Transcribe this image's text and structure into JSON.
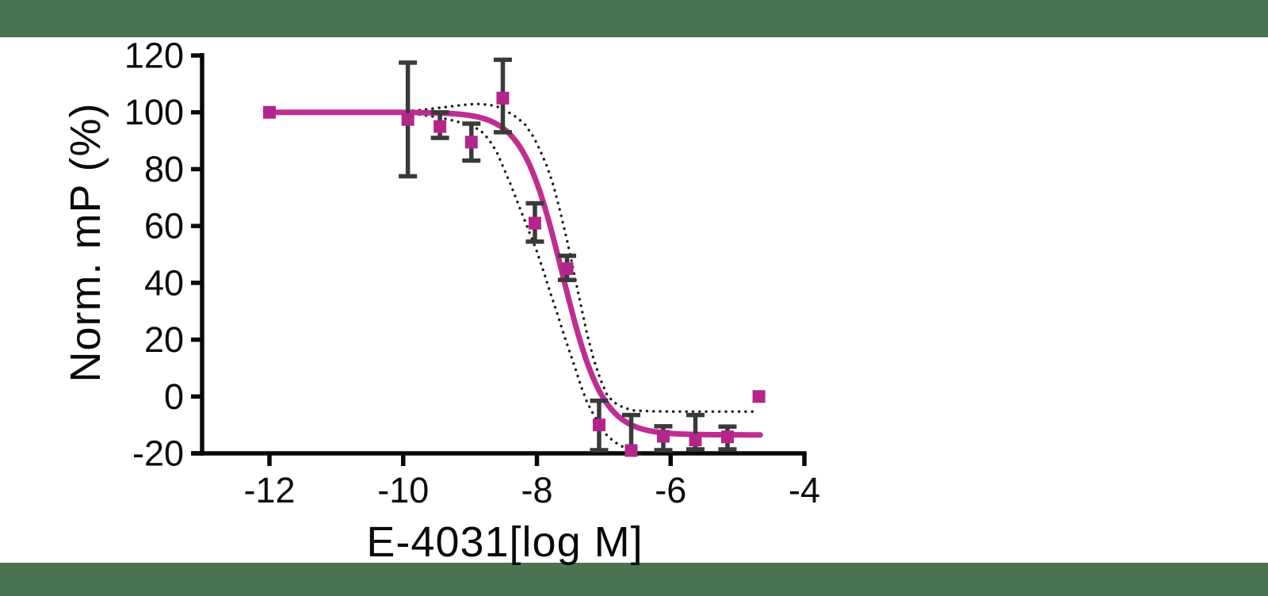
{
  "page": {
    "background": "#ffffff",
    "banner_color": "#4b7251"
  },
  "chart_data": {
    "type": "scatter",
    "subtype": "dose-response inhibition curve with 4PL fit and 95% confidence band",
    "title": "",
    "xlabel": "E-4031[log M]",
    "ylabel": "Norm. mP (%)",
    "xlim": [
      -13.0,
      -4.0
    ],
    "ylim": [
      -20,
      120
    ],
    "x_ticks": [
      -12,
      -10,
      -8,
      -6,
      -4
    ],
    "y_ticks": [
      120,
      100,
      80,
      60,
      40,
      20,
      0,
      -20
    ],
    "grid": false,
    "legend": "none",
    "colors": {
      "marker": "#b3258a",
      "curve": "#c02d92",
      "error_bar": "#3a3a3a",
      "band": "#1c1c1c",
      "axis": "#0a0a0a"
    },
    "series": [
      {
        "name": "E-4031",
        "marker": "square",
        "points": [
          {
            "x": -12.0,
            "y": 100
          },
          {
            "x": -9.93,
            "y": 97.5,
            "err_hi": 117.5,
            "err_lo": 77.5
          },
          {
            "x": -9.45,
            "y": 95,
            "err_hi": 100,
            "err_lo": 91
          },
          {
            "x": -8.98,
            "y": 89.5,
            "err_hi": 96,
            "err_lo": 83
          },
          {
            "x": -8.51,
            "y": 105,
            "err_hi": 118.5,
            "err_lo": 93
          },
          {
            "x": -8.03,
            "y": 61,
            "err_hi": 68,
            "err_lo": 54.5
          },
          {
            "x": -7.55,
            "y": 45,
            "err_hi": 49.5,
            "err_lo": 41
          },
          {
            "x": -7.07,
            "y": -10,
            "err_hi": -1.5,
            "err_lo": -18.9
          },
          {
            "x": -6.59,
            "y": -19,
            "err_hi": -6.5,
            "err_lo": -20
          },
          {
            "x": -6.11,
            "y": -14,
            "err_hi": -10.5,
            "err_lo": -18.9
          },
          {
            "x": -5.63,
            "y": -15.3,
            "err_hi": -6.5,
            "err_lo": -18.6
          },
          {
            "x": -5.15,
            "y": -14.2,
            "err_hi": -10.6,
            "err_lo": -18.6
          },
          {
            "x": -4.68,
            "y": 0
          }
        ]
      }
    ],
    "fit_curve": {
      "model": "4PL",
      "top": 100,
      "bottom": -13.5,
      "logIC50": -7.62,
      "hillslope": -1.45,
      "x_from": -12.0,
      "x_to": -4.65
    },
    "confidence_band_upper": [
      [
        -10.05,
        100.2
      ],
      [
        -9.7,
        100.9
      ],
      [
        -9.35,
        101.9
      ],
      [
        -9.1,
        102.6
      ],
      [
        -8.9,
        103
      ],
      [
        -8.7,
        102.6
      ],
      [
        -8.55,
        101.7
      ],
      [
        -8.45,
        100.4
      ],
      [
        -8.3,
        98.2
      ],
      [
        -8.18,
        95.8
      ],
      [
        -8.05,
        91.3
      ],
      [
        -7.95,
        86.5
      ],
      [
        -7.85,
        81
      ],
      [
        -7.75,
        74
      ],
      [
        -7.65,
        65
      ],
      [
        -7.55,
        55
      ],
      [
        -7.45,
        44
      ],
      [
        -7.35,
        33
      ],
      [
        -7.25,
        22
      ],
      [
        -7.15,
        13
      ],
      [
        -7.05,
        6
      ],
      [
        -6.95,
        0.5
      ],
      [
        -6.85,
        -2
      ],
      [
        -6.7,
        -4
      ],
      [
        -6.55,
        -4.9
      ],
      [
        -6.3,
        -5.2
      ],
      [
        -6.0,
        -5.3
      ],
      [
        -5.6,
        -5.3
      ],
      [
        -5.2,
        -5.3
      ],
      [
        -4.85,
        -5.3
      ],
      [
        -4.72,
        -5.3
      ]
    ],
    "confidence_band_lower": [
      [
        -10.05,
        99.8
      ],
      [
        -9.75,
        99.2
      ],
      [
        -9.45,
        98.2
      ],
      [
        -9.2,
        96.8
      ],
      [
        -9.0,
        95.3
      ],
      [
        -8.85,
        93.8
      ],
      [
        -8.72,
        90.5
      ],
      [
        -8.6,
        86
      ],
      [
        -8.5,
        80.5
      ],
      [
        -8.4,
        75
      ],
      [
        -8.3,
        69
      ],
      [
        -8.2,
        63
      ],
      [
        -8.1,
        57
      ],
      [
        -8.0,
        51
      ],
      [
        -7.9,
        44
      ],
      [
        -7.8,
        36.5
      ],
      [
        -7.7,
        29.5
      ],
      [
        -7.6,
        22
      ],
      [
        -7.5,
        15
      ],
      [
        -7.42,
        9.5
      ],
      [
        -7.34,
        3.5
      ],
      [
        -7.25,
        -2
      ],
      [
        -7.15,
        -6.5
      ],
      [
        -7.05,
        -10.5
      ],
      [
        -6.95,
        -13.8
      ],
      [
        -6.85,
        -15.8
      ],
      [
        -6.75,
        -17.3
      ],
      [
        -6.65,
        -18.4
      ],
      [
        -6.55,
        -19.4
      ],
      [
        -6.45,
        -20.5
      ]
    ]
  }
}
